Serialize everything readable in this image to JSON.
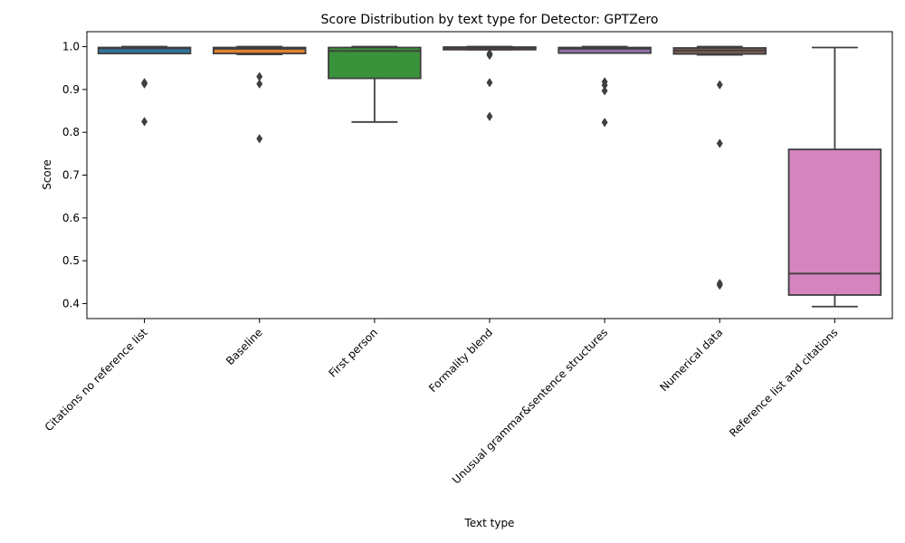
{
  "chart_data": {
    "type": "box",
    "title": "Score Distribution by text type for Detector: GPTZero",
    "xlabel": "Text type",
    "ylabel": "Score",
    "ylim": [
      0.365,
      1.035
    ],
    "yticks": [
      0.4,
      0.5,
      0.6,
      0.7,
      0.8,
      0.9,
      1.0
    ],
    "ytick_labels": [
      "0.4",
      "0.5",
      "0.6",
      "0.7",
      "0.8",
      "0.9",
      "1.0"
    ],
    "grid": false,
    "legend": "none",
    "categories": [
      {
        "name": "Citations no reference list",
        "color": "#3274a1",
        "q1": 0.984,
        "median": 0.996,
        "q3": 0.998,
        "whisker_low": 0.984,
        "whisker_high": 1.0,
        "outliers": [
          0.913,
          0.916,
          0.825
        ]
      },
      {
        "name": "Baseline",
        "color": "#e1812c",
        "q1": 0.984,
        "median": 0.995,
        "q3": 0.998,
        "whisker_low": 0.982,
        "whisker_high": 1.0,
        "outliers": [
          0.93,
          0.913,
          0.785
        ]
      },
      {
        "name": "First person",
        "color": "#3a923a",
        "q1": 0.926,
        "median": 0.99,
        "q3": 0.998,
        "whisker_low": 0.824,
        "whisker_high": 1.0,
        "outliers": []
      },
      {
        "name": "Formality blend",
        "color": "#c03d3e",
        "q1": 0.993,
        "median": 0.997,
        "q3": 0.999,
        "whisker_low": 0.993,
        "whisker_high": 1.0,
        "outliers": [
          0.984,
          0.98,
          0.916,
          0.837
        ]
      },
      {
        "name": "Unusual grammar&sentence structures",
        "color": "#9372b2",
        "q1": 0.985,
        "median": 0.995,
        "q3": 0.998,
        "whisker_low": 0.985,
        "whisker_high": 1.0,
        "outliers": [
          0.918,
          0.91,
          0.897,
          0.823
        ]
      },
      {
        "name": "Numerical data",
        "color": "#845b53",
        "q1": 0.983,
        "median": 0.991,
        "q3": 0.997,
        "whisker_low": 0.981,
        "whisker_high": 1.0,
        "outliers": [
          0.911,
          0.774,
          0.447,
          0.443
        ]
      },
      {
        "name": "Reference list and citations",
        "color": "#d684bd",
        "q1": 0.42,
        "median": 0.47,
        "q3": 0.76,
        "whisker_low": 0.393,
        "whisker_high": 0.998,
        "outliers": []
      }
    ]
  }
}
